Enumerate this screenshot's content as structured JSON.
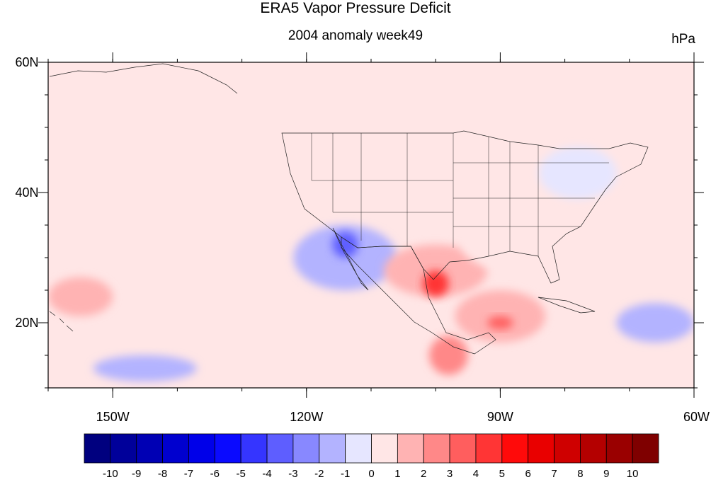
{
  "title": "ERA5 Vapor Pressure Deficit",
  "subtitle": "2004 anomaly week49",
  "units": "hPa",
  "map": {
    "lon_range": [
      -160,
      -60
    ],
    "lat_range": [
      10,
      60
    ],
    "lon_ticks": [
      {
        "lon": -150,
        "label": "150W"
      },
      {
        "lon": -120,
        "label": "120W"
      },
      {
        "lon": -90,
        "label": "90W"
      },
      {
        "lon": -60,
        "label": "60W"
      }
    ],
    "lat_ticks": [
      {
        "lat": 60,
        "label": "60N"
      },
      {
        "lat": 40,
        "label": "40N"
      },
      {
        "lat": 20,
        "label": "20N"
      }
    ],
    "background_level": "0",
    "anomaly_patches": [
      {
        "name": "north-pacific-positive",
        "lon": -155,
        "lat": 44,
        "rlon": 7,
        "rlat": 3,
        "level": "0-1"
      },
      {
        "name": "hawaii-positive",
        "lon": -155,
        "lat": 24,
        "rlon": 5,
        "rlat": 3,
        "level": "1-2"
      },
      {
        "name": "baja-negative",
        "lon": -114,
        "lat": 30,
        "rlon": 8,
        "rlat": 5,
        "level": "-2--1"
      },
      {
        "name": "socal-strong-negative",
        "lon": -114,
        "lat": 32,
        "rlon": 2,
        "rlat": 2,
        "level": "-4--3"
      },
      {
        "name": "subtropic-pacific-negative",
        "lon": -145,
        "lat": 13,
        "rlon": 8,
        "rlat": 2,
        "level": "-2--1"
      },
      {
        "name": "texas-positive",
        "lon": -100,
        "lat": 28,
        "rlon": 8,
        "rlat": 4,
        "level": "1-2"
      },
      {
        "name": "texas-strong-positive",
        "lon": -100,
        "lat": 26,
        "rlon": 2,
        "rlat": 2,
        "level": "4-5"
      },
      {
        "name": "southeast-positive",
        "lon": -88,
        "lat": 32,
        "rlon": 8,
        "rlat": 4,
        "level": "0-1"
      },
      {
        "name": "gulf-positive",
        "lon": -90,
        "lat": 21,
        "rlon": 7,
        "rlat": 4,
        "level": "1-2"
      },
      {
        "name": "yucatan-strong-positive",
        "lon": -90,
        "lat": 20,
        "rlon": 2,
        "rlat": 1,
        "level": "3-4"
      },
      {
        "name": "central-america-positive",
        "lon": -98,
        "lat": 15,
        "rlon": 3,
        "rlat": 3,
        "level": "2-3"
      },
      {
        "name": "northeast-negative",
        "lon": -78,
        "lat": 43,
        "rlon": 6,
        "rlat": 4,
        "level": "-1-0"
      },
      {
        "name": "atlantic-negative",
        "lon": -66,
        "lat": 20,
        "rlon": 6,
        "rlat": 3,
        "level": "-2--1"
      }
    ]
  },
  "colorbar": {
    "labels": [
      "-10",
      "-9",
      "-8",
      "-7",
      "-6",
      "-5",
      "-4",
      "-3",
      "-2",
      "-1",
      "0",
      "1",
      "2",
      "3",
      "4",
      "5",
      "6",
      "7",
      "8",
      "9",
      "10"
    ],
    "colors": [
      "#00007f",
      "#00009a",
      "#0000b4",
      "#0000cf",
      "#0000e9",
      "#0a0aff",
      "#3535ff",
      "#5e5eff",
      "#8888ff",
      "#b3b3ff",
      "#e6e6ff",
      "#ffe6e6",
      "#ffb3b3",
      "#ff8888",
      "#ff5e5e",
      "#ff3535",
      "#ff0a0a",
      "#e90000",
      "#cf0000",
      "#b40000",
      "#9a0000",
      "#7f0000"
    ]
  }
}
